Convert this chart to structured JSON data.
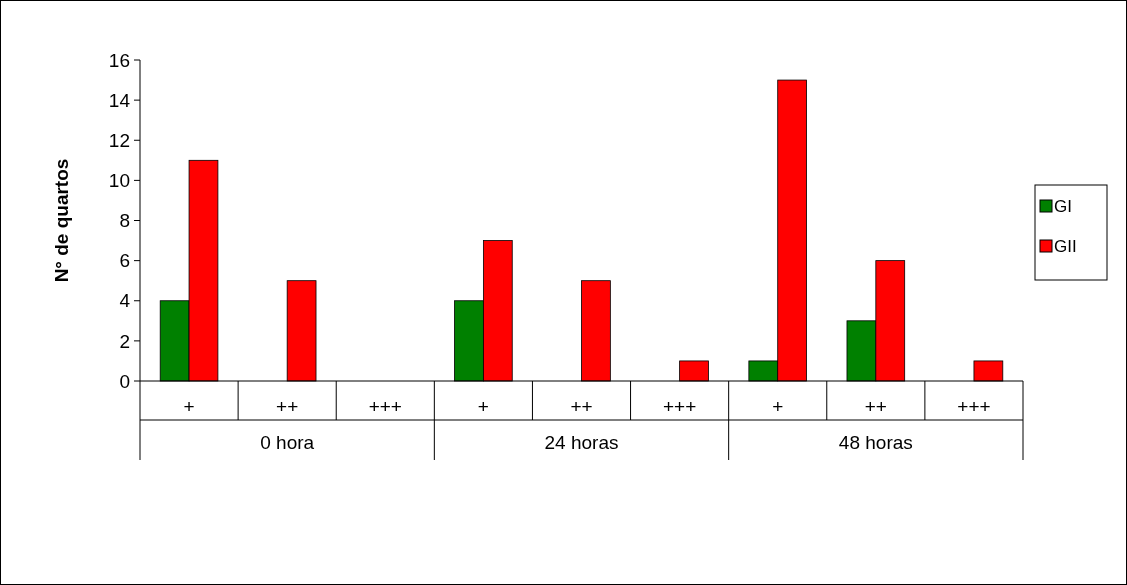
{
  "chart_data": {
    "type": "bar",
    "ylabel": "N° de quartos",
    "categories": [
      "+",
      "++",
      "+++",
      "+",
      "++",
      "+++",
      "+",
      "++",
      "+++"
    ],
    "series": [
      {
        "name": "GI",
        "color": "#008000",
        "values": [
          4,
          0,
          0,
          4,
          0,
          0,
          1,
          3,
          0
        ]
      },
      {
        "name": "GII",
        "color": "#ff0000",
        "values": [
          11,
          5,
          0,
          7,
          5,
          1,
          15,
          6,
          1
        ]
      }
    ],
    "annotations": [
      "0 hora",
      "24 horas",
      "48 horas"
    ],
    "ylim": [
      0,
      16
    ],
    "yticks": [
      0,
      2,
      4,
      6,
      8,
      10,
      12,
      14,
      16
    ],
    "legend": "right",
    "grid": false
  }
}
